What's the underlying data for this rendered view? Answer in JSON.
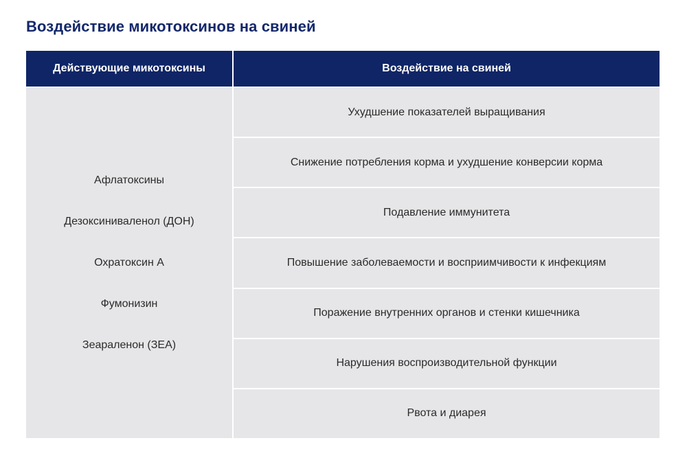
{
  "title": "Воздействие микотоксинов на свиней",
  "table": {
    "headers": [
      "Действующие микотоксины",
      "Воздействие на свиней"
    ],
    "mycotoxins": [
      "Афлатоксины",
      "Дезоксиниваленол (ДОН)",
      "Охратоксин А",
      "Фумонизин",
      "Зеараленон (ЗЕА)"
    ],
    "effects": [
      "Ухудшение показателей выращивания",
      "Снижение потребления корма и ухудшение конверсии корма",
      "Подавление иммунитета",
      "Повышение заболеваемости и восприимчивости к инфекциям",
      "Поражение внутренних органов и стенки кишечника",
      "Нарушения воспроизводительной функции",
      "Рвота и диарея"
    ]
  },
  "colors": {
    "title": "#13286b",
    "header_bg": "#0f2566",
    "cell_bg": "#e6e6e8"
  }
}
